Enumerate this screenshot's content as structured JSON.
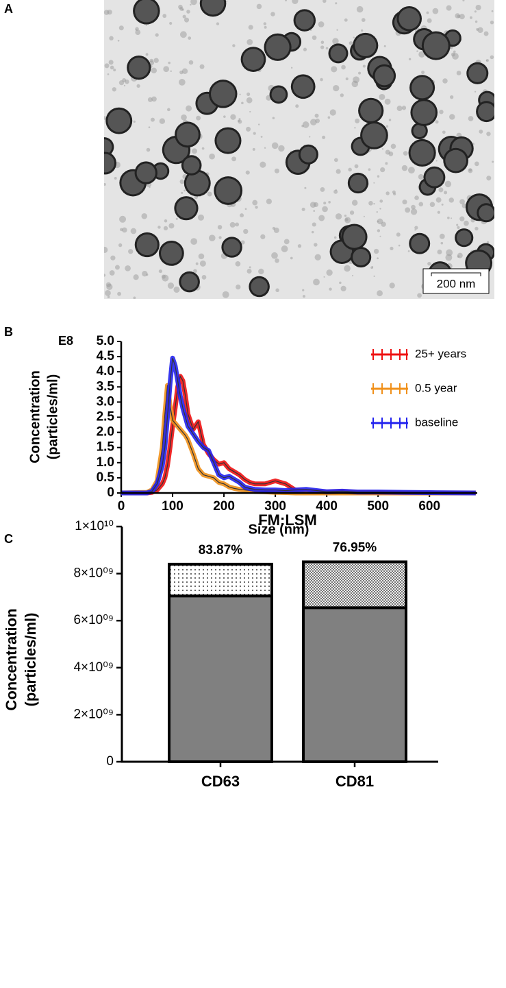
{
  "image": {
    "panel_label": "A",
    "scale_bar": "200 nm"
  },
  "chart_data": [
    {
      "type": "line",
      "panel_label": "B",
      "multiplier": "E8",
      "xlabel": "Size (nm)",
      "ylabel": [
        "Concentration",
        "(particles/ml)"
      ],
      "x": [
        0,
        50,
        60,
        70,
        80,
        85,
        90,
        95,
        100,
        105,
        110,
        115,
        120,
        125,
        130,
        140,
        150,
        160,
        170,
        180,
        190,
        200,
        210,
        220,
        230,
        240,
        250,
        260,
        280,
        300,
        320,
        340,
        360,
        400,
        430,
        460,
        500,
        550,
        600,
        690
      ],
      "series": [
        {
          "name": "25+ years",
          "color": "#ee1111",
          "values": [
            0,
            0,
            0.02,
            0.1,
            0.3,
            0.5,
            0.9,
            1.5,
            2.2,
            2.8,
            3.5,
            3.85,
            3.7,
            3.2,
            2.6,
            2.1,
            2.35,
            1.6,
            1.3,
            1.1,
            0.95,
            1.0,
            0.8,
            0.7,
            0.6,
            0.45,
            0.35,
            0.3,
            0.3,
            0.4,
            0.3,
            0.08,
            0.05,
            0.03,
            0.05,
            0.02,
            0.01,
            0,
            0,
            0
          ]
        },
        {
          "name": "0.5 year",
          "color": "#f0901a",
          "values": [
            0,
            0.02,
            0.1,
            0.4,
            1.5,
            2.6,
            3.55,
            2.9,
            2.4,
            2.3,
            2.2,
            2.1,
            2.0,
            1.9,
            1.75,
            1.3,
            0.8,
            0.6,
            0.55,
            0.5,
            0.35,
            0.3,
            0.2,
            0.15,
            0.12,
            0.1,
            0.08,
            0.05,
            0.04,
            0.02,
            0.01,
            0,
            0,
            0,
            0,
            0,
            0,
            0,
            0,
            0
          ]
        },
        {
          "name": "baseline",
          "color": "#2222ee",
          "values": [
            0,
            0,
            0.05,
            0.3,
            0.9,
            1.5,
            2.5,
            3.6,
            4.45,
            4.2,
            3.7,
            3.2,
            2.8,
            2.5,
            2.2,
            1.95,
            1.7,
            1.5,
            1.4,
            1.0,
            0.6,
            0.5,
            0.55,
            0.45,
            0.35,
            0.2,
            0.15,
            0.12,
            0.1,
            0.1,
            0.08,
            0.1,
            0.12,
            0.04,
            0.06,
            0.03,
            0.03,
            0.02,
            0.01,
            0
          ]
        }
      ],
      "xlim": [
        0,
        693
      ],
      "xticks": [
        0,
        100,
        200,
        300,
        400,
        500,
        600
      ],
      "ylim": [
        0,
        5
      ],
      "yticks": [
        0,
        0.5,
        {
          "value": 1,
          "label": "1.0"
        },
        1.5,
        {
          "value": 2,
          "label": "2.0"
        },
        2.5,
        {
          "value": 3,
          "label": "3.0"
        },
        3.5,
        {
          "value": 4,
          "label": "4.0"
        },
        4.5,
        {
          "value": 5,
          "label": "5.0"
        }
      ],
      "legend": "top-right"
    },
    {
      "type": "stacked_bar",
      "panel_label": "C",
      "title": "FM:LSM",
      "ylabel": [
        "Concentration",
        "(particles/ml)"
      ],
      "categories": [
        "CD63",
        "CD81"
      ],
      "annotations": [
        "83.87%",
        "76.95%"
      ],
      "series": [
        {
          "color": "#808080",
          "values": [
            7050000000,
            6550000000
          ]
        },
        {
          "color": "#ffffff",
          "patterns": [
            "dots",
            "checker"
          ],
          "values": [
            1350000000,
            1950000000
          ]
        }
      ],
      "ylim": [
        0,
        10000000000
      ],
      "yticks": [
        0,
        {
          "value": 2000000000,
          "label": "2×10⁰⁹"
        },
        {
          "value": 4000000000,
          "label": "4×10⁰⁹"
        },
        {
          "value": 6000000000,
          "label": "6×10⁰⁹"
        },
        {
          "value": 8000000000,
          "label": "8×10⁰⁹"
        },
        {
          "value": 10000000000,
          "label": "1×10¹⁰"
        }
      ]
    }
  ]
}
